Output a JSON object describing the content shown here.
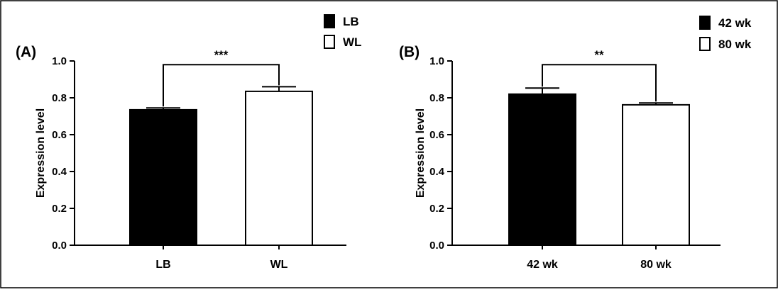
{
  "chart_data": [
    {
      "type": "bar",
      "panel_label": "(A)",
      "categories": [
        "LB",
        "WL"
      ],
      "values": [
        0.735,
        0.835
      ],
      "errors": [
        0.01,
        0.025
      ],
      "bar_fills": [
        "#000000",
        "#ffffff"
      ],
      "ylabel": "Expression level",
      "xlabel": "",
      "ylim": [
        0,
        1.0
      ],
      "yticks": [
        "0.0",
        "0.2",
        "0.4",
        "0.6",
        "0.8",
        "1.0"
      ],
      "legend": {
        "placement": "top-right",
        "entries": [
          {
            "label": "LB",
            "fill": "#000000"
          },
          {
            "label": "WL",
            "fill": "#ffffff"
          }
        ]
      },
      "significance": {
        "label": "***",
        "between": [
          0,
          1
        ],
        "level": 0.98
      },
      "grid": false
    },
    {
      "type": "bar",
      "panel_label": "(B)",
      "categories": [
        "42 wk",
        "80 wk"
      ],
      "values": [
        0.82,
        0.762
      ],
      "errors": [
        0.033,
        0.01
      ],
      "bar_fills": [
        "#000000",
        "#ffffff"
      ],
      "ylabel": "Expression level",
      "xlabel": "",
      "ylim": [
        0,
        1.0
      ],
      "yticks": [
        "0.0",
        "0.2",
        "0.4",
        "0.6",
        "0.8",
        "1.0"
      ],
      "legend": {
        "placement": "top-right",
        "entries": [
          {
            "label": "42 wk",
            "fill": "#000000"
          },
          {
            "label": "80 wk",
            "fill": "#ffffff"
          }
        ]
      },
      "significance": {
        "label": "**",
        "between": [
          0,
          1
        ],
        "level": 0.98
      },
      "grid": false
    }
  ]
}
